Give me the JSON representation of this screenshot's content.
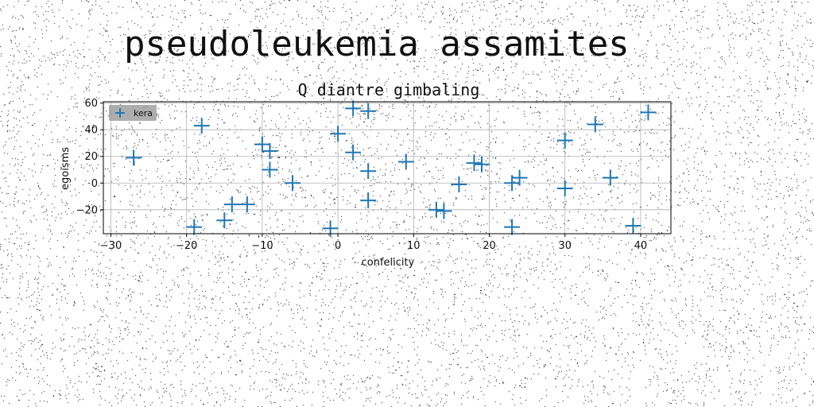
{
  "page": {
    "heading": "pseudoleukemia assamites"
  },
  "colors": {
    "series": "#1f77b4",
    "grid": "#b0b0b0",
    "legend_bg": "#a0a0a0"
  },
  "chart_data": {
    "type": "scatter",
    "title": "Q diantre gimbaling",
    "xlabel": "confelicity",
    "ylabel": "egoisms",
    "xlim": [
      -31,
      44
    ],
    "ylim": [
      -38,
      61
    ],
    "xticks": [
      -30,
      -20,
      -10,
      0,
      10,
      20,
      30,
      40
    ],
    "yticks": [
      -20,
      0,
      20,
      40,
      60
    ],
    "grid": true,
    "marker": "plus",
    "legend_position": "top-left",
    "series": [
      {
        "name": "kera",
        "points": [
          [
            -27,
            19
          ],
          [
            -19,
            -33
          ],
          [
            -18,
            43
          ],
          [
            -15,
            -28
          ],
          [
            -14,
            -16
          ],
          [
            -12,
            -16
          ],
          [
            -10,
            29
          ],
          [
            -9,
            24
          ],
          [
            -9,
            10
          ],
          [
            -6,
            0
          ],
          [
            -1,
            -34
          ],
          [
            0,
            37
          ],
          [
            2,
            56
          ],
          [
            2,
            23
          ],
          [
            4,
            54
          ],
          [
            4,
            9
          ],
          [
            4,
            -13
          ],
          [
            9,
            16
          ],
          [
            13,
            -20
          ],
          [
            14,
            -21
          ],
          [
            16,
            -1
          ],
          [
            18,
            15
          ],
          [
            19,
            14
          ],
          [
            23,
            -33
          ],
          [
            23,
            0
          ],
          [
            24,
            4
          ],
          [
            30,
            32
          ],
          [
            30,
            -4
          ],
          [
            34,
            44
          ],
          [
            36,
            4
          ],
          [
            39,
            -32
          ],
          [
            41,
            53
          ]
        ]
      }
    ]
  }
}
